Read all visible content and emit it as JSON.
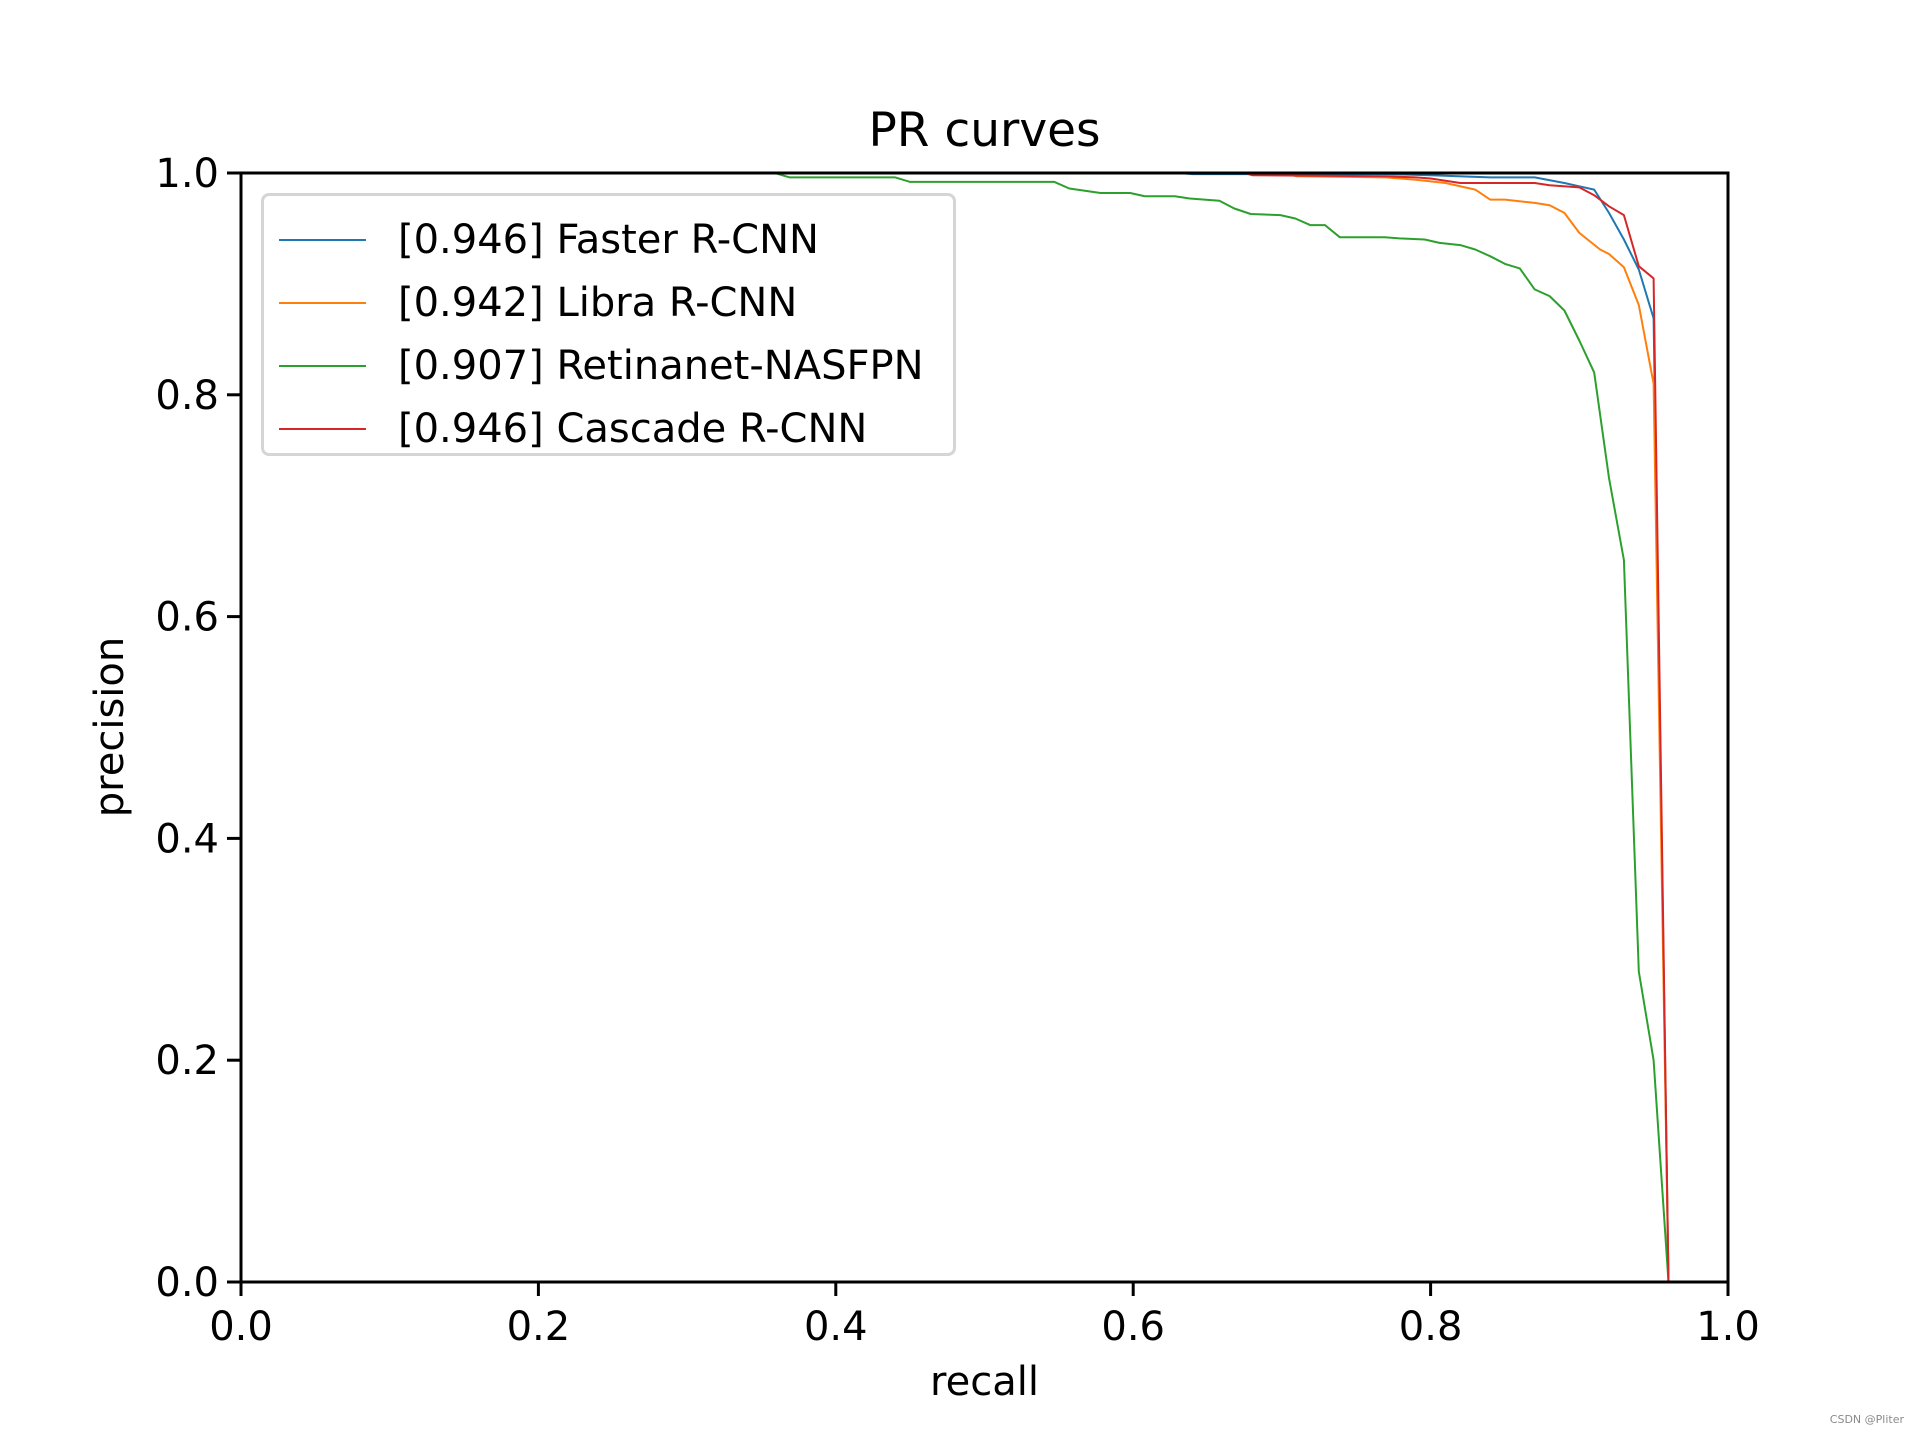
{
  "chart_data": {
    "type": "line",
    "title": "PR curves",
    "xlabel": "recall",
    "ylabel": "precision",
    "xlim": [
      0.0,
      1.0
    ],
    "ylim": [
      0.0,
      1.0
    ],
    "xticks": [
      "0.0",
      "0.2",
      "0.4",
      "0.6",
      "0.8",
      "1.0"
    ],
    "yticks": [
      "0.0",
      "0.2",
      "0.4",
      "0.6",
      "0.8",
      "1.0"
    ],
    "grid": false,
    "legend_position": "upper left",
    "series": [
      {
        "name": "Faster R-CNN",
        "ap": "0.946",
        "label": "[0.946] Faster R-CNN",
        "color": "#1f77b4",
        "points": [
          [
            0.0,
            1.0
          ],
          [
            0.63,
            1.0
          ],
          [
            0.64,
            0.999
          ],
          [
            0.77,
            0.999
          ],
          [
            0.8,
            0.998
          ],
          [
            0.84,
            0.996
          ],
          [
            0.87,
            0.996
          ],
          [
            0.89,
            0.991
          ],
          [
            0.9,
            0.988
          ],
          [
            0.91,
            0.985
          ],
          [
            0.92,
            0.964
          ],
          [
            0.93,
            0.94
          ],
          [
            0.94,
            0.913
          ],
          [
            0.95,
            0.869
          ],
          [
            0.96,
            0.0
          ],
          [
            1.0,
            0.0
          ]
        ]
      },
      {
        "name": "Libra R-CNN",
        "ap": "0.942",
        "label": "[0.942] Libra R-CNN",
        "color": "#ff7f0e",
        "points": [
          [
            0.0,
            1.0
          ],
          [
            0.7,
            1.0
          ],
          [
            0.71,
            0.997
          ],
          [
            0.77,
            0.996
          ],
          [
            0.79,
            0.994
          ],
          [
            0.81,
            0.991
          ],
          [
            0.83,
            0.985
          ],
          [
            0.84,
            0.976
          ],
          [
            0.85,
            0.976
          ],
          [
            0.87,
            0.973
          ],
          [
            0.88,
            0.971
          ],
          [
            0.89,
            0.964
          ],
          [
            0.9,
            0.946
          ],
          [
            0.914,
            0.931
          ],
          [
            0.92,
            0.927
          ],
          [
            0.93,
            0.915
          ],
          [
            0.94,
            0.881
          ],
          [
            0.95,
            0.81
          ],
          [
            0.96,
            0.0
          ],
          [
            1.0,
            0.0
          ]
        ]
      },
      {
        "name": "Retinanet-NASFPN",
        "ap": "0.907",
        "label": "[0.907] Retinanet-NASFPN",
        "color": "#2ca02c",
        "points": [
          [
            0.0,
            1.0
          ],
          [
            0.359,
            1.0
          ],
          [
            0.369,
            0.996
          ],
          [
            0.44,
            0.996
          ],
          [
            0.45,
            0.992
          ],
          [
            0.547,
            0.992
          ],
          [
            0.557,
            0.986
          ],
          [
            0.578,
            0.982
          ],
          [
            0.598,
            0.982
          ],
          [
            0.608,
            0.979
          ],
          [
            0.628,
            0.979
          ],
          [
            0.638,
            0.977
          ],
          [
            0.658,
            0.975
          ],
          [
            0.668,
            0.968
          ],
          [
            0.679,
            0.963
          ],
          [
            0.699,
            0.962
          ],
          [
            0.709,
            0.959
          ],
          [
            0.719,
            0.953
          ],
          [
            0.729,
            0.953
          ],
          [
            0.739,
            0.942
          ],
          [
            0.769,
            0.942
          ],
          [
            0.779,
            0.941
          ],
          [
            0.796,
            0.94
          ],
          [
            0.806,
            0.937
          ],
          [
            0.82,
            0.935
          ],
          [
            0.83,
            0.931
          ],
          [
            0.84,
            0.925
          ],
          [
            0.85,
            0.918
          ],
          [
            0.86,
            0.914
          ],
          [
            0.87,
            0.895
          ],
          [
            0.88,
            0.889
          ],
          [
            0.89,
            0.876
          ],
          [
            0.9,
            0.849
          ],
          [
            0.91,
            0.82
          ],
          [
            0.92,
            0.725
          ],
          [
            0.93,
            0.651
          ],
          [
            0.94,
            0.28
          ],
          [
            0.95,
            0.2
          ],
          [
            0.96,
            0.0
          ],
          [
            1.0,
            0.0
          ]
        ]
      },
      {
        "name": "Cascade R-CNN",
        "ap": "0.946",
        "label": "[0.946] Cascade R-CNN",
        "color": "#d62728",
        "points": [
          [
            0.0,
            1.0
          ],
          [
            0.675,
            1.0
          ],
          [
            0.68,
            0.998
          ],
          [
            0.77,
            0.997
          ],
          [
            0.79,
            0.996
          ],
          [
            0.8,
            0.995
          ],
          [
            0.81,
            0.993
          ],
          [
            0.82,
            0.991
          ],
          [
            0.87,
            0.991
          ],
          [
            0.88,
            0.989
          ],
          [
            0.9,
            0.987
          ],
          [
            0.91,
            0.98
          ],
          [
            0.92,
            0.97
          ],
          [
            0.93,
            0.962
          ],
          [
            0.94,
            0.916
          ],
          [
            0.95,
            0.905
          ],
          [
            0.96,
            0.0
          ],
          [
            1.0,
            0.0
          ]
        ]
      }
    ]
  },
  "watermark": "CSDN @Pliter"
}
